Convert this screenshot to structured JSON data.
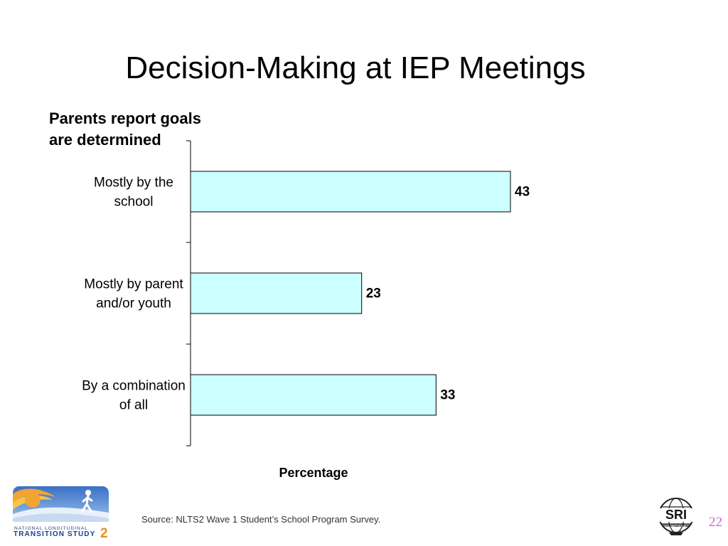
{
  "slide": {
    "title": "Decision-Making at IEP Meetings",
    "group_label_line1": "Parents report goals",
    "group_label_line2": "are determined",
    "source": "Source: NLTS2 Wave 1 Student’s School Program Survey.",
    "page_number": "22"
  },
  "logos": {
    "nlts_line1": "NATIONAL  LONGITUDINAL",
    "nlts_line2": "TRANSITION STUDY",
    "nlts_number": "2",
    "sri_text": "SRI",
    "sri_subtext": "International"
  },
  "colors": {
    "bar_fill": "#ccffff",
    "bar_stroke": "#000000",
    "page_number": "#cc66cc"
  },
  "chart_data": {
    "type": "bar",
    "orientation": "horizontal",
    "categories": [
      [
        "Mostly by the",
        "school"
      ],
      [
        "Mostly by parent",
        "and/or youth"
      ],
      [
        "By a combination",
        "of all"
      ]
    ],
    "values": [
      43,
      23,
      33
    ],
    "data_labels": [
      "43",
      "23",
      "33"
    ],
    "xlabel": "Percentage",
    "xlim": [
      0,
      100
    ],
    "grid": false,
    "legend": "none"
  }
}
